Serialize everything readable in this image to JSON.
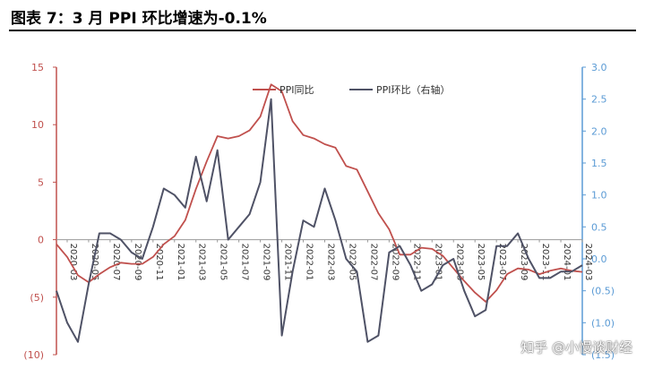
{
  "title": "图表 7：3 月 PPI 环比增速为-0.1%",
  "watermark": "知乎 @小慢谈财经",
  "colors": {
    "yoy": "#c0504d",
    "mom": "#4f5266",
    "left_axis": "#c0504d",
    "right_axis": "#5b9bd5"
  },
  "chart_data": {
    "type": "line",
    "x": [
      "2020-02",
      "2020-03",
      "2020-04",
      "2020-05",
      "2020-06",
      "2020-07",
      "2020-08",
      "2020-09",
      "2020-10",
      "2020-11",
      "2020-12",
      "2021-01",
      "2021-02",
      "2021-03",
      "2021-04",
      "2021-05",
      "2021-06",
      "2021-07",
      "2021-08",
      "2021-09",
      "2021-10",
      "2021-11",
      "2021-12",
      "2022-01",
      "2022-02",
      "2022-03",
      "2022-04",
      "2022-05",
      "2022-06",
      "2022-07",
      "2022-08",
      "2022-09",
      "2022-10",
      "2022-11",
      "2022-12",
      "2023-01",
      "2023-02",
      "2023-03",
      "2023-04",
      "2023-05",
      "2023-06",
      "2023-07",
      "2023-08",
      "2023-09",
      "2023-10",
      "2023-11",
      "2023-12",
      "2024-01",
      "2024-02",
      "2024-03"
    ],
    "x_tick_labels": [
      "2020-03",
      "2020-05",
      "2020-07",
      "2020-09",
      "2020-11",
      "2021-01",
      "2021-03",
      "2021-05",
      "2021-07",
      "2021-09",
      "2021-11",
      "2022-01",
      "2022-03",
      "2022-05",
      "2022-07",
      "2022-09",
      "2022-11",
      "2023-01",
      "2023-03",
      "2023-05",
      "2023-07",
      "2023-09",
      "2023-11",
      "2024-01",
      "2024-03"
    ],
    "series": [
      {
        "name": "PPI同比",
        "axis": "left",
        "values": [
          -0.4,
          -1.5,
          -3.1,
          -3.7,
          -3.0,
          -2.4,
          -2.0,
          -2.1,
          -2.1,
          -1.5,
          -0.4,
          0.3,
          1.7,
          4.4,
          6.8,
          9.0,
          8.8,
          9.0,
          9.5,
          10.7,
          13.5,
          12.9,
          10.3,
          9.1,
          8.8,
          8.3,
          8.0,
          6.4,
          6.1,
          4.2,
          2.3,
          0.9,
          -1.3,
          -1.3,
          -0.7,
          -0.8,
          -1.4,
          -2.5,
          -3.6,
          -4.6,
          -5.4,
          -4.4,
          -3.0,
          -2.5,
          -2.6,
          -3.0,
          -2.7,
          -2.5,
          -2.7,
          -2.8
        ]
      },
      {
        "name": "PPI环比（右轴）",
        "axis": "right",
        "values": [
          -0.5,
          -1.0,
          -1.3,
          -0.4,
          0.4,
          0.4,
          0.3,
          0.1,
          0.0,
          0.5,
          1.1,
          1.0,
          0.8,
          1.6,
          0.9,
          1.7,
          0.3,
          0.5,
          0.7,
          1.2,
          2.5,
          -1.2,
          -0.2,
          0.6,
          0.5,
          1.1,
          0.6,
          0.0,
          -0.2,
          -1.3,
          -1.2,
          0.1,
          0.2,
          -0.1,
          -0.5,
          -0.4,
          -0.1,
          0.0,
          -0.5,
          -0.9,
          -0.8,
          0.2,
          0.2,
          0.4,
          0.0,
          -0.3,
          -0.3,
          -0.2,
          -0.2,
          -0.1
        ]
      }
    ],
    "left_axis": {
      "range": [
        -10,
        15
      ],
      "ticks": [
        15,
        10,
        5,
        0,
        -5,
        -10
      ],
      "tick_labels": [
        "15",
        "10",
        "5",
        "0",
        "(5)",
        "(10)"
      ]
    },
    "right_axis": {
      "range": [
        -1.5,
        3.0
      ],
      "ticks": [
        3.0,
        2.5,
        2.0,
        1.5,
        1.0,
        0.5,
        0.0,
        -0.5,
        -1.0,
        -1.5
      ],
      "tick_labels": [
        "3.0",
        "2.5",
        "2.0",
        "1.5",
        "1.0",
        "0.5",
        "0.0",
        "(0.5)",
        "(1.0)",
        "(1.5)"
      ]
    },
    "legend_position": "top-center",
    "grid": false
  }
}
